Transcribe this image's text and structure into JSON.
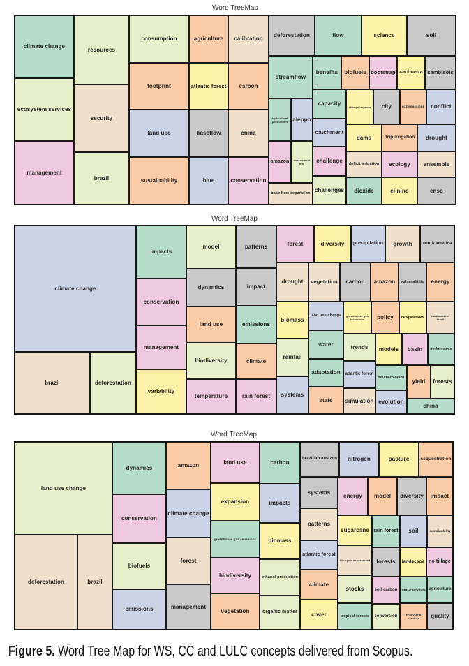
{
  "palette": {
    "G": "#b5dcc9",
    "L": "#e7efca",
    "P": "#efc9df",
    "B": "#f0e0cb",
    "O": "#f9cba7",
    "Y": "#fdf2a7",
    "U": "#cbd3e6",
    "R": "#c9c9c9"
  },
  "chart_data": [
    {
      "type": "treemap",
      "title": "Word TreeMap",
      "cells": [
        {
          "label": "climate change",
          "color": "G"
        },
        {
          "label": "ecosystem services",
          "color": "L"
        },
        {
          "label": "management",
          "color": "P"
        },
        {
          "label": "resources",
          "color": "L"
        },
        {
          "label": "security",
          "color": "B"
        },
        {
          "label": "brazil",
          "color": "L"
        },
        {
          "label": "consumption",
          "color": "L"
        },
        {
          "label": "footprint",
          "color": "O"
        },
        {
          "label": "land use",
          "color": "U"
        },
        {
          "label": "sustainability",
          "color": "O"
        },
        {
          "label": "agriculture",
          "color": "O"
        },
        {
          "label": "atlantic forest",
          "color": "Y"
        },
        {
          "label": "baseflow",
          "color": "R"
        },
        {
          "label": "blue",
          "color": "U"
        },
        {
          "label": "calibration",
          "color": "B"
        },
        {
          "label": "carbon",
          "color": "O"
        },
        {
          "label": "china",
          "color": "B"
        },
        {
          "label": "conservation",
          "color": "P"
        },
        {
          "label": "deforestation",
          "color": "R"
        },
        {
          "label": "flow",
          "color": "G"
        },
        {
          "label": "science",
          "color": "Y"
        },
        {
          "label": "soil",
          "color": "R"
        },
        {
          "label": "streamflow",
          "color": "G"
        },
        {
          "label": "agricultural production",
          "color": "G"
        },
        {
          "label": "aleppo",
          "color": "U"
        },
        {
          "label": "amazon",
          "color": "P"
        },
        {
          "label": "assessment tool",
          "color": "L"
        },
        {
          "label": "base flow separation",
          "color": "B"
        },
        {
          "label": "benefits",
          "color": "G"
        },
        {
          "label": "biofuels",
          "color": "O"
        },
        {
          "label": "bootstrap",
          "color": "P"
        },
        {
          "label": "cachoeira",
          "color": "Y"
        },
        {
          "label": "cambisols",
          "color": "R"
        },
        {
          "label": "capacity",
          "color": "G"
        },
        {
          "label": "catchment",
          "color": "U"
        },
        {
          "label": "challenge",
          "color": "P"
        },
        {
          "label": "challenges",
          "color": "L"
        },
        {
          "label": "change impacts",
          "color": "Y"
        },
        {
          "label": "city",
          "color": "R"
        },
        {
          "label": "co2 emissions",
          "color": "O"
        },
        {
          "label": "conflict",
          "color": "U"
        },
        {
          "label": "dams",
          "color": "Y"
        },
        {
          "label": "drip irrigation",
          "color": "O"
        },
        {
          "label": "drought",
          "color": "U"
        },
        {
          "label": "deficit irrigation",
          "color": "B"
        },
        {
          "label": "ecology",
          "color": "P"
        },
        {
          "label": "ensemble",
          "color": "B"
        },
        {
          "label": "dioxide",
          "color": "G"
        },
        {
          "label": "el nino",
          "color": "Y"
        },
        {
          "label": "enso",
          "color": "R"
        }
      ]
    },
    {
      "type": "treemap",
      "title": "Word TreeMap",
      "cells": [
        {
          "label": "climate change",
          "color": "U"
        },
        {
          "label": "brazil",
          "color": "B"
        },
        {
          "label": "deforestation",
          "color": "L"
        },
        {
          "label": "impacts",
          "color": "G"
        },
        {
          "label": "conservation",
          "color": "P"
        },
        {
          "label": "management",
          "color": "P"
        },
        {
          "label": "variability",
          "color": "Y"
        },
        {
          "label": "model",
          "color": "L"
        },
        {
          "label": "dynamics",
          "color": "R"
        },
        {
          "label": "land use",
          "color": "O"
        },
        {
          "label": "biodiversity",
          "color": "L"
        },
        {
          "label": "temperature",
          "color": "P"
        },
        {
          "label": "patterns",
          "color": "R"
        },
        {
          "label": "impact",
          "color": "R"
        },
        {
          "label": "emissions",
          "color": "G"
        },
        {
          "label": "climate",
          "color": "O"
        },
        {
          "label": "rain forest",
          "color": "P"
        },
        {
          "label": "forest",
          "color": "P"
        },
        {
          "label": "diversity",
          "color": "Y"
        },
        {
          "label": "precipitation",
          "color": "U"
        },
        {
          "label": "growth",
          "color": "B"
        },
        {
          "label": "south america",
          "color": "R"
        },
        {
          "label": "drought",
          "color": "B"
        },
        {
          "label": "vegetation",
          "color": "B"
        },
        {
          "label": "carbon",
          "color": "R"
        },
        {
          "label": "amazon",
          "color": "O"
        },
        {
          "label": "vulnerability",
          "color": "R"
        },
        {
          "label": "energy",
          "color": "O"
        },
        {
          "label": "biomass",
          "color": "Y"
        },
        {
          "label": "rainfall",
          "color": "L"
        },
        {
          "label": "systems",
          "color": "U"
        },
        {
          "label": "land use change",
          "color": "U"
        },
        {
          "label": "water",
          "color": "G"
        },
        {
          "label": "adaptation",
          "color": "G"
        },
        {
          "label": "state",
          "color": "O"
        },
        {
          "label": "greenhouse gas emissions",
          "color": "Y"
        },
        {
          "label": "trends",
          "color": "L"
        },
        {
          "label": "atlantic forest",
          "color": "U"
        },
        {
          "label": "simulation",
          "color": "B"
        },
        {
          "label": "policy",
          "color": "O"
        },
        {
          "label": "responses",
          "color": "Y"
        },
        {
          "label": "northeastern brazil",
          "color": "B"
        },
        {
          "label": "models",
          "color": "Y"
        },
        {
          "label": "basin",
          "color": "P"
        },
        {
          "label": "performance",
          "color": "G"
        },
        {
          "label": "southern brazil",
          "color": "G"
        },
        {
          "label": "evolution",
          "color": "U"
        },
        {
          "label": "yield",
          "color": "O"
        },
        {
          "label": "forests",
          "color": "L"
        },
        {
          "label": "china",
          "color": "G"
        }
      ]
    },
    {
      "type": "treemap",
      "title": "Word TreeMap",
      "cells": [
        {
          "label": "land use change",
          "color": "L"
        },
        {
          "label": "deforestation",
          "color": "B"
        },
        {
          "label": "brazil",
          "color": "B"
        },
        {
          "label": "dynamics",
          "color": "G"
        },
        {
          "label": "conservation",
          "color": "P"
        },
        {
          "label": "biofuels",
          "color": "L"
        },
        {
          "label": "emissions",
          "color": "U"
        },
        {
          "label": "amazon",
          "color": "O"
        },
        {
          "label": "climate change",
          "color": "U"
        },
        {
          "label": "forest",
          "color": "B"
        },
        {
          "label": "management",
          "color": "R"
        },
        {
          "label": "land use",
          "color": "P"
        },
        {
          "label": "expansion",
          "color": "Y"
        },
        {
          "label": "greenhouse gas emissions",
          "color": "G"
        },
        {
          "label": "biodiversity",
          "color": "P"
        },
        {
          "label": "vegetation",
          "color": "O"
        },
        {
          "label": "carbon",
          "color": "G"
        },
        {
          "label": "impacts",
          "color": "U"
        },
        {
          "label": "biomass",
          "color": "Y"
        },
        {
          "label": "ethanol production",
          "color": "L"
        },
        {
          "label": "organic matter",
          "color": "L"
        },
        {
          "label": "brazilian amazon",
          "color": "R"
        },
        {
          "label": "nitrogen",
          "color": "U"
        },
        {
          "label": "pasture",
          "color": "Y"
        },
        {
          "label": "sequestration",
          "color": "O"
        },
        {
          "label": "systems",
          "color": "R"
        },
        {
          "label": "patterns",
          "color": "B"
        },
        {
          "label": "atlantic forest",
          "color": "U"
        },
        {
          "label": "climate",
          "color": "O"
        },
        {
          "label": "cover",
          "color": "Y"
        },
        {
          "label": "energy",
          "color": "P"
        },
        {
          "label": "model",
          "color": "O"
        },
        {
          "label": "diversity",
          "color": "R"
        },
        {
          "label": "impact",
          "color": "O"
        },
        {
          "label": "sugarcane",
          "color": "Y"
        },
        {
          "label": "life cycle assessment",
          "color": "B"
        },
        {
          "label": "stocks",
          "color": "L"
        },
        {
          "label": "tropical forests",
          "color": "G"
        },
        {
          "label": "rain forest",
          "color": "G"
        },
        {
          "label": "forests",
          "color": "R"
        },
        {
          "label": "soil carbon",
          "color": "P"
        },
        {
          "label": "conversion",
          "color": "L"
        },
        {
          "label": "soil",
          "color": "U"
        },
        {
          "label": "sustainability",
          "color": "B"
        },
        {
          "label": "landscape",
          "color": "Y"
        },
        {
          "label": "no tillage",
          "color": "P"
        },
        {
          "label": "mato grosso",
          "color": "G"
        },
        {
          "label": "agriculture",
          "color": "G"
        },
        {
          "label": "ecosystem services",
          "color": "O"
        },
        {
          "label": "quality",
          "color": "R"
        }
      ]
    }
  ],
  "caption": {
    "label": "Figure 5.",
    "text": " Word Tree Map for WS, CC and LULC concepts delivered from Scopus."
  }
}
